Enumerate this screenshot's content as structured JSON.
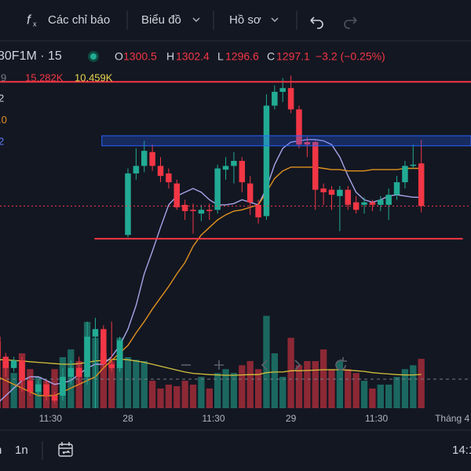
{
  "toolbar": {
    "indicators": "Các chỉ báo",
    "chart": "Biểu đồ",
    "profile": "Hồ sơ"
  },
  "legend": {
    "symbol": "30F1M · 15",
    "open_label": "O",
    "open": 1300.5,
    "high_label": "H",
    "high": 1302.4,
    "low_label": "L",
    "low": 1296.6,
    "close_label": "C",
    "close": 1297.1,
    "change": "−3.2 (−0.25%)",
    "volume_period": "9",
    "volume": "15.282K",
    "volume_ma": "10.459K"
  },
  "indicator_labels": [
    {
      "text": "2",
      "color": "#d1d4dc"
    },
    {
      "text": ".0",
      "color": "#e0911f"
    },
    {
      "text": "2",
      "color": "#5b7cfa"
    }
  ],
  "bottom_bar": {
    "left_partial": "n",
    "interval": "1n",
    "time": "14:1"
  },
  "chart_data": {
    "type": "candlestick",
    "xlim": [
      0.3,
      58.1
    ],
    "ylim": [
      1281,
      1308.2
    ],
    "volume_ylim": [
      0,
      35000
    ],
    "xticks": [
      {
        "value": 6.5,
        "label": "11:30"
      },
      {
        "value": 16,
        "label": "28"
      },
      {
        "value": 26.5,
        "label": "11:30"
      },
      {
        "value": 36,
        "label": "29"
      },
      {
        "value": 46.5,
        "label": "11:30"
      },
      {
        "value": 55.8,
        "label": "Tháng 4"
      }
    ],
    "colors": {
      "up": "#22ab94",
      "down": "#f23645"
    },
    "open": [
      1286.7,
      1285.1,
      1284.2,
      1284.8,
      1283.2,
      1282.3,
      1282.9,
      1282.0,
      1282.0,
      1283.5,
      1284.2,
      1283.5,
      1286.7,
      1287.3,
      1284.5,
      1284.2,
      1294.8,
      1299.7,
      1300.3,
      1301.4,
      1300.3,
      1299.7,
      1298.9,
      1297.2,
      1296.8,
      1296.5,
      1296.8,
      1296.8,
      1300.0,
      1300.3,
      1300.7,
      1298.9,
      1297.2,
      1296.3,
      1305.1,
      1306.2,
      1306.5,
      1304.8,
      1302.2,
      1302.2,
      1298.5,
      1298.4,
      1297.9,
      1298.4,
      1297.4,
      1297.2,
      1297.4,
      1297.2,
      1297.2,
      1298.0,
      1299.0,
      1300.3,
      1300.5
    ],
    "high": [
      1287.0,
      1285.4,
      1285.1,
      1285.1,
      1283.5,
      1283.2,
      1283.2,
      1282.3,
      1284.2,
      1284.8,
      1285.1,
      1287.9,
      1288.2,
      1287.6,
      1287.9,
      1286.7,
      1300.1,
      1301.7,
      1302.3,
      1302.0,
      1301.0,
      1300.1,
      1299.2,
      1297.6,
      1297.3,
      1297.2,
      1297.3,
      1300.4,
      1301.0,
      1301.4,
      1301.0,
      1299.5,
      1297.6,
      1306.0,
      1306.7,
      1307.3,
      1307.5,
      1305.1,
      1302.6,
      1302.3,
      1298.9,
      1298.7,
      1298.7,
      1298.7,
      1297.9,
      1297.8,
      1297.6,
      1297.9,
      1298.5,
      1299.5,
      1300.7,
      1302.0,
      1302.4
    ],
    "low": [
      1284.8,
      1283.5,
      1283.9,
      1282.3,
      1282.0,
      1282.0,
      1281.6,
      1281.4,
      1281.6,
      1282.9,
      1282.9,
      1282.9,
      1281.0,
      1284.2,
      1283.9,
      1283.9,
      1294.6,
      1299.2,
      1299.8,
      1299.9,
      1299.0,
      1298.5,
      1296.8,
      1296.0,
      1294.9,
      1295.9,
      1296.0,
      1296.5,
      1299.2,
      1298.9,
      1298.2,
      1296.4,
      1295.7,
      1296.0,
      1304.8,
      1305.4,
      1304.5,
      1301.7,
      1301.0,
      1296.8,
      1297.2,
      1296.8,
      1295.1,
      1296.8,
      1296.5,
      1296.5,
      1296.7,
      1296.7,
      1296.0,
      1297.6,
      1298.5,
      1300.1,
      1296.6
    ],
    "close": [
      1285.1,
      1284.2,
      1284.8,
      1283.2,
      1282.3,
      1282.9,
      1282.0,
      1281.6,
      1283.5,
      1284.2,
      1283.5,
      1286.7,
      1287.3,
      1284.5,
      1284.2,
      1286.4,
      1299.7,
      1300.3,
      1301.5,
      1300.3,
      1299.5,
      1299.0,
      1297.0,
      1296.7,
      1296.7,
      1296.8,
      1296.7,
      1300.1,
      1300.3,
      1300.7,
      1299.0,
      1297.4,
      1296.2,
      1305.1,
      1306.2,
      1306.5,
      1304.8,
      1302.0,
      1302.0,
      1298.4,
      1298.2,
      1298.0,
      1298.4,
      1297.2,
      1296.8,
      1297.4,
      1297.2,
      1297.6,
      1298.0,
      1299.0,
      1300.3,
      1300.4,
      1297.1
    ],
    "volume": [
      20600,
      14600,
      10900,
      17000,
      12100,
      9700,
      8500,
      12100,
      15800,
      18200,
      14600,
      26700,
      21800,
      17000,
      14600,
      21800,
      15800,
      15000,
      14600,
      8500,
      6100,
      7300,
      6800,
      8500,
      7300,
      9700,
      6100,
      10900,
      12100,
      10900,
      13300,
      14600,
      12100,
      28600,
      17000,
      9700,
      21800,
      13300,
      14600,
      14600,
      18200,
      12100,
      14600,
      12100,
      10900,
      8500,
      6100,
      7300,
      7300,
      9700,
      12100,
      13300,
      15282
    ],
    "volume_ma": {
      "color": "#d4c13a",
      "values": [
        15000,
        15000,
        14800,
        14600,
        14400,
        14200,
        14000,
        13800,
        13600,
        13600,
        13800,
        14200,
        14600,
        14800,
        15000,
        15200,
        15000,
        14600,
        14200,
        13600,
        13000,
        12400,
        11800,
        11200,
        10800,
        10600,
        10400,
        10300,
        10200,
        10200,
        10300,
        10400,
        10400,
        11000,
        11200,
        11200,
        11600,
        11600,
        11700,
        11800,
        11900,
        11900,
        11900,
        11800,
        11600,
        11400,
        11000,
        10800,
        10600,
        10400,
        10300,
        10300,
        10459
      ]
    },
    "volume_ref": 9000,
    "lines": [
      {
        "color": "#a9a3e8",
        "values": [
          1281.4,
          1282.0,
          1282.6,
          1283.2,
          1283.5,
          1283.5,
          1283.2,
          1282.9,
          1283.0,
          1283.2,
          1283.7,
          1284.2,
          1284.5,
          1284.5,
          1285.1,
          1286.0,
          1287.3,
          1289.2,
          1291.7,
          1293.5,
          1295.4,
          1297.2,
          1297.9,
          1298.2,
          1298.5,
          1298.2,
          1297.6,
          1297.2,
          1297.2,
          1297.3,
          1297.6,
          1297.4,
          1297.2,
          1298.5,
          1300.4,
          1301.7,
          1302.2,
          1302.3,
          1302.4,
          1302.4,
          1302.3,
          1302.0,
          1301.0,
          1299.5,
          1298.2,
          1297.6,
          1297.4,
          1297.6,
          1297.9,
          1298.0,
          1297.9,
          1297.8,
          1297.8
        ]
      },
      {
        "color": "#e0911f",
        "values": [
          1283.5,
          1283.2,
          1282.9,
          1282.6,
          1282.3,
          1282.0,
          1282.0,
          1282.0,
          1282.3,
          1282.6,
          1282.9,
          1283.2,
          1283.5,
          1284.2,
          1284.8,
          1285.4,
          1286.0,
          1287.0,
          1287.9,
          1288.9,
          1289.8,
          1290.7,
          1291.7,
          1292.6,
          1293.9,
          1294.8,
          1295.4,
          1296.0,
          1296.4,
          1296.7,
          1296.8,
          1297.0,
          1297.2,
          1298.2,
          1299.3,
          1299.9,
          1300.2,
          1300.2,
          1300.2,
          1300.2,
          1300.1,
          1300.0,
          1300.0,
          1299.9,
          1299.9,
          1299.9,
          1300.0,
          1300.0,
          1300.0,
          1300.0,
          1300.1,
          1300.1,
          1300.1
        ]
      }
    ],
    "hlines": [
      {
        "value": 1307.0,
        "start": 0.3,
        "end": 58.1,
        "color": "#f23645"
      },
      {
        "value": 1294.5,
        "start": 11.9,
        "end": 57.1,
        "color": "#f23645"
      }
    ],
    "zone": {
      "low": 1301.9,
      "high": 1302.7,
      "start": 12.8,
      "end": 58.1,
      "color": "#2962ff"
    }
  }
}
